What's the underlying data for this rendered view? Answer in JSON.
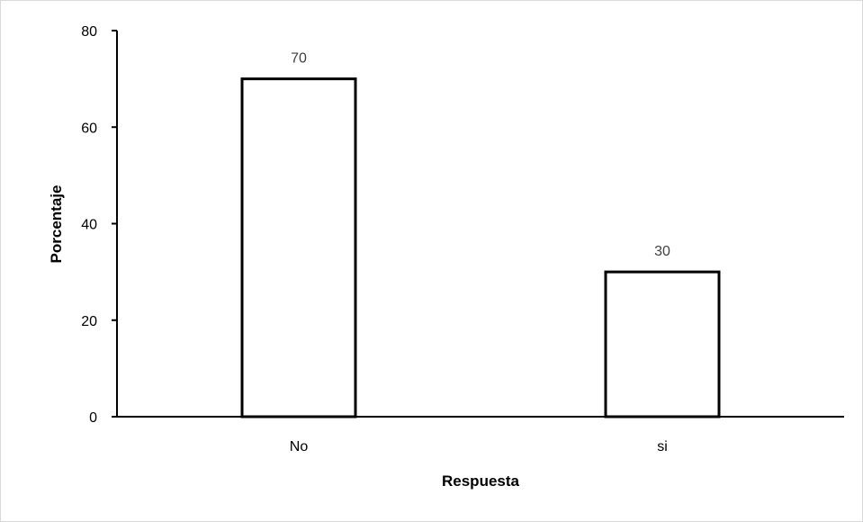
{
  "chart_data": {
    "type": "bar",
    "title": "",
    "xlabel": "Respuesta",
    "ylabel": "Porcentaje",
    "categories": [
      "No",
      "si"
    ],
    "values": [
      70,
      30
    ],
    "data_labels": [
      "70",
      "30"
    ],
    "ylim": [
      0,
      80
    ],
    "yticks": [
      0,
      20,
      40,
      60,
      80
    ],
    "grid": false,
    "legend": "none",
    "colors": {
      "bar_fill": "#ffffff",
      "bar_stroke": "#000000",
      "axis": "#000000",
      "data_label": "#404040"
    }
  }
}
